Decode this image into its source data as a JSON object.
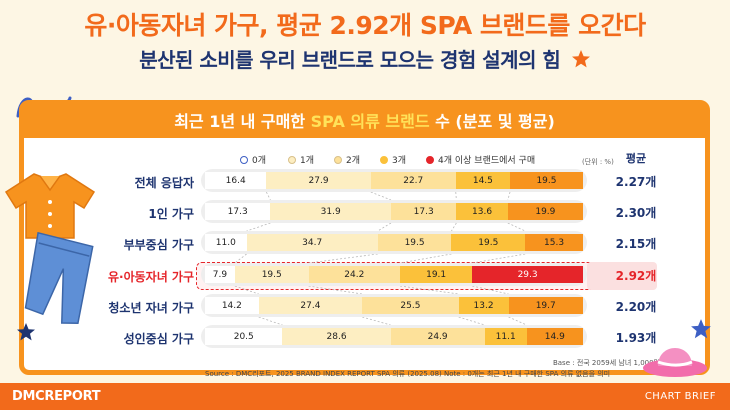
{
  "header": {
    "title": "유·아동자녀 가구, 평균 2.92개 SPA 브랜드를 오간다",
    "subtitle": "분산된 소비를 우리 브랜드로 모으는 경험 설계의 힘"
  },
  "chart_data": {
    "type": "bar",
    "stacked": true,
    "horizontal": true,
    "title_parts": [
      "최근 1년 내 구매한 ",
      "SPA 의류 브랜드",
      " 수 (분포 및 평균)"
    ],
    "legend": [
      "0개",
      "1개",
      "2개",
      "3개",
      "4개 이상 브랜드에서 구매"
    ],
    "unit": "(단위 : %)",
    "avg_header": "평균",
    "categories": [
      "전체 응답자",
      "1인 가구",
      "부부중심 가구",
      "유·아동자녀 가구",
      "청소년 자녀 가구",
      "성인중심 가구"
    ],
    "series": [
      {
        "name": "0개",
        "values": [
          16.4,
          17.3,
          11.0,
          7.9,
          14.2,
          20.5
        ]
      },
      {
        "name": "1개",
        "values": [
          27.9,
          31.9,
          34.7,
          19.5,
          27.4,
          28.6
        ]
      },
      {
        "name": "2개",
        "values": [
          22.7,
          17.3,
          19.5,
          24.2,
          25.5,
          24.9
        ]
      },
      {
        "name": "3개",
        "values": [
          14.5,
          13.6,
          19.5,
          19.1,
          13.2,
          11.1
        ]
      },
      {
        "name": "4개 이상 브랜드에서 구매",
        "values": [
          19.5,
          19.9,
          15.3,
          29.3,
          19.7,
          14.9
        ]
      }
    ],
    "averages": [
      "2.27개",
      "2.30개",
      "2.15개",
      "2.92개",
      "2.20개",
      "1.93개"
    ],
    "highlight_index": 3
  },
  "colors": {
    "seg0": "#ffffff",
    "seg1": "#fdeec2",
    "seg2": "#fde19a",
    "seg3": "#fbc13a",
    "seg4": "#f7931e",
    "highlight_last": "#e5252a",
    "orange": "#f26a1b",
    "navy": "#1e3470"
  },
  "notes": {
    "base": "Base : 전국 2059세 남녀 1,000명",
    "source": "Source : DMC리포트, 2025 BRAND INDEX REPORT SPA 의류 (2025.08)  Note : 0개는 최근 1년 내 구매한 SPA 의류 없음을 의미"
  },
  "footer": {
    "logo": "DMCREPORT",
    "right": "CHART BRIEF"
  },
  "decorations": [
    "shirt-icon",
    "jeans-icon",
    "sun-hat-icon",
    "star-icon",
    "swirl-icon"
  ]
}
